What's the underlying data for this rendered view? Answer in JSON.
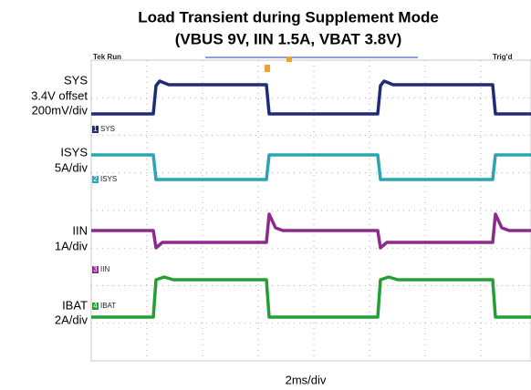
{
  "title": [
    "Load Transient during Supplement Mode",
    "(VBUS 9V, IIN 1.5A, VBAT 3.8V)"
  ],
  "scope": {
    "status": "Tek Run",
    "trigger": "Trig'd"
  },
  "channels": [
    {
      "number": "1",
      "tag": "SYS",
      "labels": [
        "SYS",
        "3.4V offset",
        "200mV/div"
      ]
    },
    {
      "number": "2",
      "tag": "ISYS",
      "labels": [
        "ISYS",
        "5A/div"
      ]
    },
    {
      "number": "3",
      "tag": "IIN",
      "labels": [
        "IIN",
        "1A/div"
      ]
    },
    {
      "number": "4",
      "tag": "IBAT",
      "labels": [
        "IBAT",
        "2A/div"
      ]
    }
  ],
  "timebase": "2ms/div"
}
